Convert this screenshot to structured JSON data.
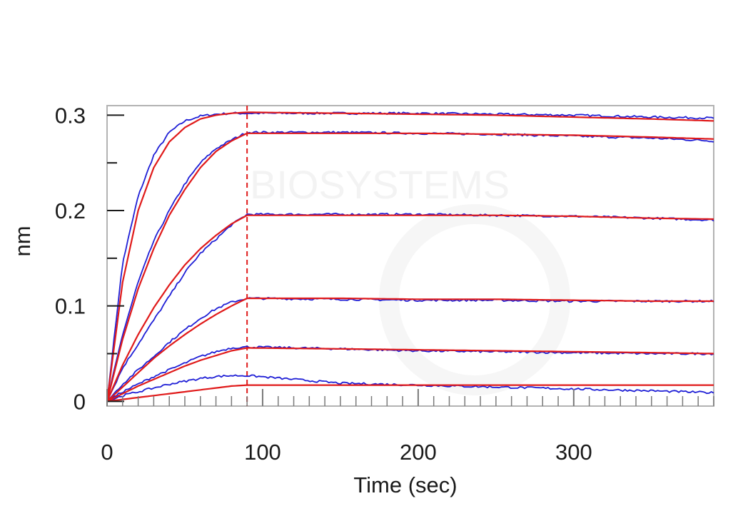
{
  "chart_data": {
    "type": "line",
    "title": "",
    "xlabel": "Time (sec)",
    "ylabel": "nm",
    "xlim": [
      0,
      390
    ],
    "ylim": [
      -0.005,
      0.31
    ],
    "x_ticks": [
      0,
      100,
      200,
      300
    ],
    "y_ticks": [
      0,
      0.1,
      0.2,
      0.3
    ],
    "x_tick_labels": [
      "0",
      "100",
      "200",
      "300"
    ],
    "y_tick_labels": [
      "0",
      "0.1",
      "0.2",
      "0.3"
    ],
    "association_end_time": 90,
    "grid": false,
    "legend": "none",
    "watermark": "BIOSYSTEMS",
    "colors": {
      "measured": "#1f1fd6",
      "fit": "#e01a1a",
      "marker": "#e01a1a",
      "frame": "#b3b3b3"
    },
    "series": [
      {
        "kind": "curve",
        "measured": {
          "x": [
            0,
            10,
            20,
            30,
            40,
            50,
            60,
            70,
            80,
            90,
            150,
            200,
            250,
            300,
            350,
            390
          ],
          "y": [
            0,
            0.145,
            0.215,
            0.258,
            0.282,
            0.294,
            0.299,
            0.301,
            0.302,
            0.302,
            0.302,
            0.302,
            0.301,
            0.3,
            0.298,
            0.297
          ]
        },
        "fit": {
          "x": [
            0,
            10,
            20,
            30,
            40,
            50,
            60,
            70,
            80,
            90,
            150,
            200,
            250,
            300,
            350,
            390
          ],
          "y": [
            0,
            0.125,
            0.2,
            0.245,
            0.272,
            0.287,
            0.296,
            0.3,
            0.302,
            0.303,
            0.302,
            0.301,
            0.3,
            0.298,
            0.296,
            0.294
          ]
        }
      },
      {
        "kind": "curve",
        "measured": {
          "x": [
            0,
            10,
            20,
            30,
            40,
            50,
            60,
            70,
            80,
            90,
            150,
            200,
            250,
            300,
            350,
            390
          ],
          "y": [
            0,
            0.07,
            0.125,
            0.168,
            0.2,
            0.228,
            0.25,
            0.265,
            0.274,
            0.282,
            0.282,
            0.281,
            0.28,
            0.278,
            0.276,
            0.273
          ]
        },
        "fit": {
          "x": [
            0,
            10,
            20,
            30,
            40,
            50,
            60,
            70,
            80,
            90,
            150,
            200,
            250,
            300,
            350,
            390
          ],
          "y": [
            0,
            0.065,
            0.118,
            0.16,
            0.195,
            0.222,
            0.245,
            0.262,
            0.273,
            0.281,
            0.281,
            0.281,
            0.28,
            0.279,
            0.277,
            0.275
          ]
        }
      },
      {
        "kind": "curve",
        "measured": {
          "x": [
            0,
            10,
            20,
            30,
            40,
            50,
            60,
            70,
            80,
            90,
            150,
            200,
            250,
            300,
            350,
            390
          ],
          "y": [
            0,
            0.035,
            0.06,
            0.085,
            0.11,
            0.135,
            0.155,
            0.17,
            0.185,
            0.196,
            0.196,
            0.196,
            0.195,
            0.194,
            0.192,
            0.19
          ]
        },
        "fit": {
          "x": [
            0,
            10,
            20,
            30,
            40,
            50,
            60,
            70,
            80,
            90,
            150,
            200,
            250,
            300,
            350,
            390
          ],
          "y": [
            0,
            0.038,
            0.07,
            0.098,
            0.122,
            0.143,
            0.16,
            0.174,
            0.186,
            0.195,
            0.195,
            0.195,
            0.195,
            0.194,
            0.192,
            0.191
          ]
        }
      },
      {
        "kind": "curve",
        "measured": {
          "x": [
            0,
            10,
            20,
            30,
            40,
            50,
            60,
            70,
            80,
            90,
            150,
            200,
            250,
            300,
            350,
            390
          ],
          "y": [
            0,
            0.018,
            0.033,
            0.047,
            0.062,
            0.075,
            0.087,
            0.097,
            0.104,
            0.108,
            0.107,
            0.106,
            0.106,
            0.105,
            0.105,
            0.105
          ]
        },
        "fit": {
          "x": [
            0,
            10,
            20,
            30,
            40,
            50,
            60,
            70,
            80,
            90,
            150,
            200,
            250,
            300,
            350,
            390
          ],
          "y": [
            0,
            0.015,
            0.03,
            0.045,
            0.058,
            0.07,
            0.081,
            0.091,
            0.1,
            0.108,
            0.108,
            0.107,
            0.107,
            0.106,
            0.105,
            0.105
          ]
        }
      },
      {
        "kind": "curve",
        "measured": {
          "x": [
            0,
            10,
            20,
            30,
            40,
            50,
            60,
            70,
            80,
            90,
            150,
            200,
            250,
            300,
            350,
            390
          ],
          "y": [
            0,
            0.01,
            0.018,
            0.026,
            0.033,
            0.04,
            0.047,
            0.052,
            0.056,
            0.057,
            0.055,
            0.053,
            0.052,
            0.051,
            0.05,
            0.05
          ]
        },
        "fit": {
          "x": [
            0,
            10,
            20,
            30,
            40,
            50,
            60,
            70,
            80,
            90,
            150,
            200,
            250,
            300,
            350,
            390
          ],
          "y": [
            0,
            0.008,
            0.016,
            0.023,
            0.03,
            0.037,
            0.043,
            0.048,
            0.053,
            0.056,
            0.055,
            0.054,
            0.053,
            0.052,
            0.051,
            0.05
          ]
        }
      },
      {
        "kind": "curve",
        "measured": {
          "x": [
            0,
            10,
            20,
            30,
            40,
            50,
            60,
            70,
            80,
            90,
            150,
            200,
            250,
            300,
            350,
            390
          ],
          "y": [
            0,
            0.006,
            0.01,
            0.014,
            0.018,
            0.021,
            0.024,
            0.026,
            0.027,
            0.027,
            0.019,
            0.017,
            0.015,
            0.013,
            0.011,
            0.009
          ]
        },
        "fit": {
          "x": [
            0,
            10,
            20,
            30,
            40,
            50,
            60,
            70,
            80,
            90,
            150,
            200,
            250,
            300,
            350,
            390
          ],
          "y": [
            0,
            0.002,
            0.004,
            0.006,
            0.008,
            0.01,
            0.012,
            0.014,
            0.016,
            0.017,
            0.017,
            0.017,
            0.017,
            0.017,
            0.017,
            0.017
          ]
        }
      }
    ]
  }
}
